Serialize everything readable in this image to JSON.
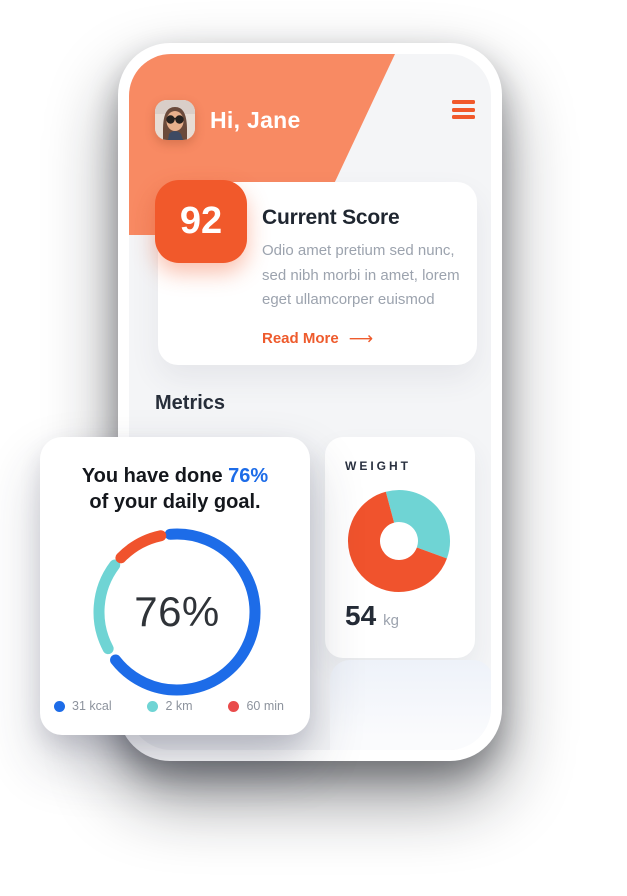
{
  "header": {
    "greeting": "Hi, Jane",
    "avatar": "jane-profile-photo",
    "menu_icon": "hamburger-menu"
  },
  "score_card": {
    "score": "92",
    "title": "Current Score",
    "body": "Odio amet pretium sed nunc, sed nibh morbi in amet, lorem eget ullamcorper euismod",
    "read_more": "Read More",
    "arrow": "⟶"
  },
  "metrics": {
    "heading": "Metrics"
  },
  "goal_card": {
    "line1_prefix": "You have done ",
    "percent": "76%",
    "line2": "of your daily goal."
  },
  "weight_card": {
    "title": "WEIGHT",
    "value": "54",
    "unit": "kg"
  },
  "colors": {
    "header_salmon": "#f88a63",
    "accent_orange": "#f1592b",
    "read_more_orange": "#ee5b2d",
    "progress_blue": "#1d6ce8",
    "teal": "#6fd4d4",
    "legend_red": "#e94b4b",
    "screen_bg": "#f4f5f7",
    "text_dark": "#1f2630",
    "text_gray": "#9ca3ae"
  },
  "chart_data": [
    {
      "type": "donut",
      "id": "daily-goal-ring",
      "title": "You have done 76% of your daily goal.",
      "center_label": "76%",
      "percent_complete": 76,
      "legend_position": "bottom",
      "segments": [
        {
          "name": "calories",
          "label": "31 kcal",
          "color": "#1d6ce8",
          "start_deg": 355,
          "sweep_deg": 237
        },
        {
          "name": "distance",
          "label": "2 km",
          "color": "#6fd4d4",
          "start_deg": 242,
          "sweep_deg": 65
        },
        {
          "name": "time",
          "label": "60 min",
          "color": "#f0532d",
          "start_deg": 314,
          "sweep_deg": 34
        }
      ],
      "legend": [
        {
          "label": "31 kcal",
          "color": "#1d6ce8"
        },
        {
          "label": "2 km",
          "color": "#6fd4d4"
        },
        {
          "label": "60 min",
          "color": "#e94b4b"
        }
      ]
    },
    {
      "type": "donut",
      "id": "weight-donut",
      "title": "WEIGHT",
      "value": 54,
      "unit": "kg",
      "segments": [
        {
          "name": "teal-slice",
          "color": "#6fd4d4",
          "start_deg": 345,
          "sweep_deg": 125,
          "share_pct": 35
        },
        {
          "name": "orange-slice",
          "color": "#f0532d",
          "start_deg": 110,
          "sweep_deg": 235,
          "share_pct": 65
        }
      ]
    }
  ]
}
